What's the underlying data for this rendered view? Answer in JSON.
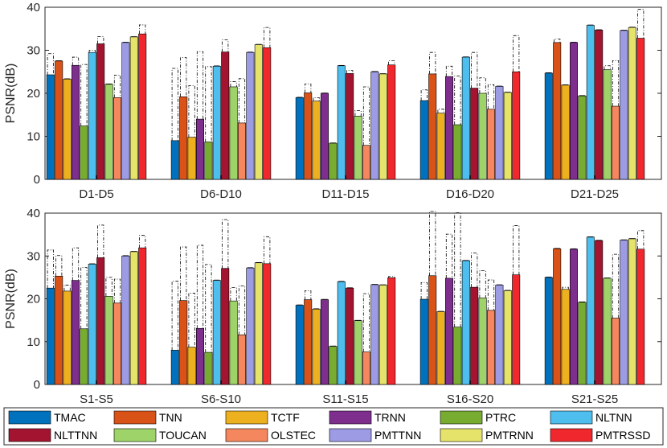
{
  "chart_data": [
    {
      "type": "bar",
      "panel": "top",
      "ylabel": "PSNR(dB)",
      "ylim": [
        0,
        40
      ],
      "yticks": [
        0,
        10,
        20,
        30,
        40
      ],
      "categories": [
        "D1-D5",
        "D6-D10",
        "D11-D15",
        "D16-D20",
        "D21-D25"
      ],
      "series": [
        {
          "name": "TMAC",
          "values": [
            24.3,
            9.0,
            19.0,
            18.3,
            24.7
          ],
          "err": [
            29.2,
            25.8,
            19.0,
            20.8,
            24.7
          ]
        },
        {
          "name": "TNN",
          "values": [
            27.5,
            19.2,
            20.1,
            24.5,
            31.8
          ],
          "err": [
            27.5,
            28.3,
            22.2,
            29.5,
            32.6
          ]
        },
        {
          "name": "TCTF",
          "values": [
            23.3,
            9.8,
            18.2,
            15.4,
            21.9
          ],
          "err": [
            23.3,
            21.8,
            19.0,
            16.3,
            21.9
          ]
        },
        {
          "name": "TRNN",
          "values": [
            26.5,
            14.0,
            20.0,
            23.9,
            31.8
          ],
          "err": [
            28.4,
            29.7,
            20.0,
            26.3,
            31.8
          ]
        },
        {
          "name": "PTRC",
          "values": [
            12.4,
            8.7,
            8.4,
            12.7,
            19.4
          ],
          "err": [
            26.7,
            26.2,
            8.4,
            24.0,
            19.4
          ]
        },
        {
          "name": "NLTNN",
          "values": [
            29.5,
            26.3,
            26.4,
            28.4,
            35.8
          ],
          "err": [
            30.0,
            26.3,
            26.4,
            28.4,
            35.8
          ]
        },
        {
          "name": "NLTTNN",
          "values": [
            31.5,
            29.6,
            24.6,
            21.2,
            34.7
          ],
          "err": [
            33.2,
            32.4,
            25.3,
            29.5,
            34.7
          ]
        },
        {
          "name": "TOUCAN",
          "values": [
            22.1,
            21.5,
            14.7,
            20.0,
            25.5
          ],
          "err": [
            22.1,
            22.7,
            16.0,
            23.6,
            26.4
          ]
        },
        {
          "name": "OLSTEC",
          "values": [
            19.0,
            13.1,
            7.9,
            16.3,
            17.0
          ],
          "err": [
            24.2,
            23.4,
            21.5,
            22.0,
            27.6
          ]
        },
        {
          "name": "PMTTNN",
          "values": [
            31.8,
            29.5,
            25.0,
            21.6,
            34.6
          ],
          "err": [
            31.8,
            29.5,
            25.0,
            21.6,
            34.6
          ]
        },
        {
          "name": "PMTRNN",
          "values": [
            33.1,
            31.3,
            24.5,
            20.2,
            35.3
          ],
          "err": [
            33.1,
            31.3,
            24.5,
            20.2,
            35.3
          ]
        },
        {
          "name": "PMTRSSD",
          "values": [
            33.8,
            30.6,
            26.6,
            25.0,
            32.8
          ],
          "err": [
            35.9,
            35.3,
            27.6,
            33.4,
            39.5
          ]
        }
      ]
    },
    {
      "type": "bar",
      "panel": "bottom",
      "ylabel": "PSNR(dB)",
      "ylim": [
        0,
        40
      ],
      "yticks": [
        0,
        10,
        20,
        30,
        40
      ],
      "categories": [
        "S1-S5",
        "S6-S10",
        "S11-S15",
        "S16-S20",
        "S21-S25"
      ],
      "series": [
        {
          "name": "TMAC",
          "values": [
            22.5,
            8.0,
            18.5,
            19.9,
            25.0
          ],
          "err": [
            31.4,
            24.1,
            18.5,
            23.8,
            25.0
          ]
        },
        {
          "name": "TNN",
          "values": [
            25.3,
            19.6,
            19.8,
            25.4,
            31.7
          ],
          "err": [
            30.1,
            32.1,
            21.9,
            40.4,
            31.7
          ]
        },
        {
          "name": "TCTF",
          "values": [
            21.8,
            8.7,
            17.6,
            17.0,
            22.2
          ],
          "err": [
            23.2,
            21.3,
            17.6,
            17.0,
            22.7
          ]
        },
        {
          "name": "TRNN",
          "values": [
            24.3,
            13.1,
            19.8,
            24.8,
            31.6
          ],
          "err": [
            31.9,
            32.5,
            19.8,
            35.1,
            31.6
          ]
        },
        {
          "name": "PTRC",
          "values": [
            13.0,
            7.5,
            8.9,
            13.4,
            19.2
          ],
          "err": [
            27.3,
            28.0,
            8.9,
            40.1,
            19.2
          ]
        },
        {
          "name": "NLTNN",
          "values": [
            28.1,
            24.3,
            24.0,
            28.9,
            34.4
          ],
          "err": [
            28.1,
            24.3,
            24.0,
            28.9,
            34.4
          ]
        },
        {
          "name": "NLTTNN",
          "values": [
            29.6,
            27.1,
            22.5,
            22.7,
            33.6
          ],
          "err": [
            37.2,
            38.5,
            22.5,
            30.7,
            33.6
          ]
        },
        {
          "name": "TOUCAN",
          "values": [
            20.6,
            19.5,
            14.9,
            20.2,
            24.8
          ],
          "err": [
            25.0,
            22.6,
            14.9,
            26.6,
            24.8
          ]
        },
        {
          "name": "OLSTEC",
          "values": [
            19.0,
            11.6,
            7.6,
            17.3,
            15.5
          ],
          "err": [
            24.6,
            23.0,
            21.2,
            24.4,
            30.4
          ]
        },
        {
          "name": "PMTTNN",
          "values": [
            30.0,
            27.2,
            23.3,
            23.2,
            33.7
          ],
          "err": [
            30.0,
            27.2,
            23.3,
            23.2,
            33.7
          ]
        },
        {
          "name": "PMTRNN",
          "values": [
            31.0,
            28.4,
            23.2,
            21.9,
            34.0
          ],
          "err": [
            31.0,
            28.4,
            23.2,
            21.9,
            34.0
          ]
        },
        {
          "name": "PMTRSSD",
          "values": [
            31.9,
            28.2,
            24.9,
            25.6,
            31.6
          ],
          "err": [
            34.8,
            34.5,
            25.2,
            37.1,
            35.9
          ]
        }
      ]
    }
  ],
  "legend": {
    "position": "bottom",
    "entries": [
      {
        "name": "TMAC",
        "color": "#0072BD"
      },
      {
        "name": "TNN",
        "color": "#D95319"
      },
      {
        "name": "TCTF",
        "color": "#EDB120"
      },
      {
        "name": "TRNN",
        "color": "#7E2F8E"
      },
      {
        "name": "PTRC",
        "color": "#77AC30"
      },
      {
        "name": "NLTNN",
        "color": "#4DBEEE"
      },
      {
        "name": "NLTTNN",
        "color": "#A2142F"
      },
      {
        "name": "TOUCAN",
        "color": "#9ED36A"
      },
      {
        "name": "OLSTEC",
        "color": "#F4875E"
      },
      {
        "name": "PMTTNN",
        "color": "#9C9BE3"
      },
      {
        "name": "PMTRNN",
        "color": "#E6E36A"
      },
      {
        "name": "PMTRSSD",
        "color": "#F0282D"
      }
    ]
  }
}
